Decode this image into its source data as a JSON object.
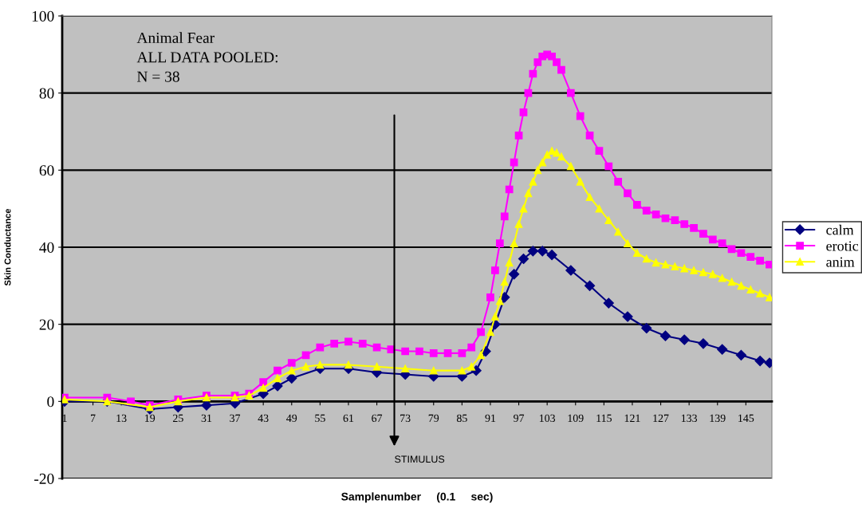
{
  "chart_data": {
    "type": "line",
    "xlabel": "Samplenumber     (0.1     sec)",
    "ylabel": "Skin Conductance",
    "annotations": [
      "Animal Fear",
      "ALL DATA POOLED:",
      "N = 38",
      "STIMULUS"
    ],
    "xlim": [
      0.5,
      150.5
    ],
    "xticks": [
      1,
      7,
      13,
      19,
      25,
      31,
      37,
      43,
      49,
      55,
      61,
      67,
      73,
      79,
      85,
      91,
      97,
      103,
      109,
      115,
      121,
      127,
      133,
      139,
      145
    ],
    "ylim": [
      -20,
      100
    ],
    "yticks": [
      -20,
      0,
      20,
      40,
      60,
      80,
      100
    ],
    "grid": "y",
    "legend": "right",
    "series": [
      {
        "name": "calm",
        "color": "#000080",
        "marker": "diamond",
        "x": [
          1,
          10,
          19,
          25,
          31,
          37,
          43,
          46,
          49,
          55,
          61,
          67,
          73,
          79,
          85,
          88,
          90,
          92,
          94,
          96,
          98,
          100,
          102,
          104,
          108,
          112,
          116,
          120,
          124,
          128,
          132,
          136,
          140,
          144,
          148,
          150
        ],
        "values": [
          0,
          0,
          -2,
          -1.5,
          -1,
          -0.5,
          2,
          4,
          6,
          8.5,
          8.5,
          7.5,
          7,
          6.5,
          6.5,
          8,
          13,
          20,
          27,
          33,
          37,
          39,
          39,
          38,
          34,
          30,
          25.5,
          22,
          19,
          17,
          16,
          15,
          13.5,
          12,
          10.5,
          10
        ]
      },
      {
        "name": "erotic",
        "color": "#ff00ff",
        "marker": "square",
        "x": [
          1,
          10,
          15,
          19,
          25,
          31,
          37,
          40,
          43,
          46,
          49,
          52,
          55,
          58,
          61,
          64,
          67,
          70,
          73,
          76,
          79,
          82,
          85,
          87,
          89,
          91,
          92,
          93,
          94,
          95,
          96,
          97,
          98,
          99,
          100,
          101,
          102,
          103,
          104,
          105,
          106,
          108,
          110,
          112,
          114,
          116,
          118,
          120,
          122,
          124,
          126,
          128,
          130,
          132,
          134,
          136,
          138,
          140,
          142,
          144,
          146,
          148,
          150
        ],
        "values": [
          1,
          1,
          0,
          -1,
          0.5,
          1.5,
          1.5,
          2,
          5,
          8,
          10,
          12,
          14,
          15,
          15.5,
          15,
          14,
          13.5,
          13,
          13,
          12.5,
          12.5,
          12.5,
          14,
          18,
          27,
          34,
          41,
          48,
          55,
          62,
          69,
          75,
          80,
          85,
          88,
          89.5,
          90,
          89.5,
          88,
          86,
          80,
          74,
          69,
          65,
          61,
          57,
          54,
          51,
          49.5,
          48.5,
          47.5,
          47,
          46,
          45,
          43.5,
          42,
          41,
          39.5,
          38.5,
          37.5,
          36.5,
          35.5
        ]
      },
      {
        "name": "anim",
        "color": "#ffff00",
        "marker": "triangle",
        "x": [
          1,
          10,
          19,
          25,
          31,
          37,
          40,
          43,
          46,
          49,
          52,
          55,
          61,
          67,
          73,
          79,
          85,
          87,
          89,
          91,
          92,
          93,
          94,
          95,
          96,
          97,
          98,
          99,
          100,
          101,
          102,
          103,
          104,
          105,
          106,
          108,
          110,
          112,
          114,
          116,
          118,
          120,
          122,
          124,
          126,
          128,
          130,
          132,
          134,
          136,
          138,
          140,
          142,
          144,
          146,
          148,
          150
        ],
        "values": [
          0.5,
          0,
          -1.5,
          0,
          1,
          1,
          1.5,
          3.5,
          6,
          8,
          9,
          9.5,
          9.5,
          9,
          8.5,
          8,
          8,
          9,
          12,
          18,
          22,
          26,
          31,
          36,
          41,
          46,
          50,
          54,
          57,
          60,
          62,
          64,
          65,
          64.5,
          63.5,
          61,
          57,
          53,
          50,
          47,
          44,
          41,
          38.5,
          37,
          36,
          35.5,
          35,
          34.5,
          34,
          33.5,
          33,
          32,
          31,
          30,
          29,
          28,
          27
        ]
      }
    ]
  }
}
